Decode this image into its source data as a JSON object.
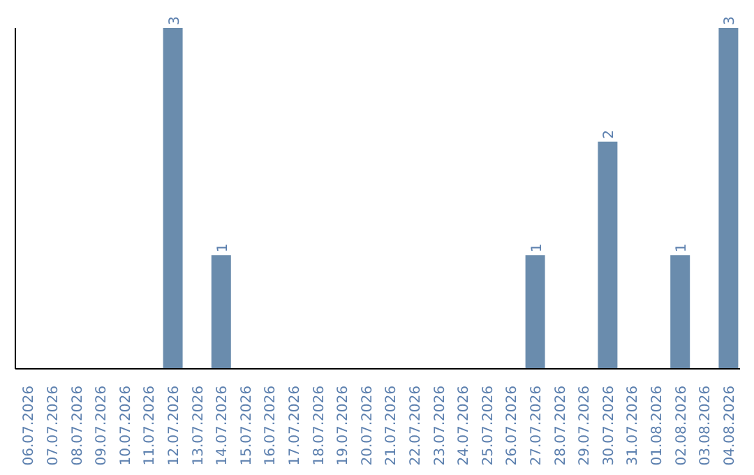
{
  "chart_data": {
    "type": "bar",
    "categories": [
      "06.07.2026",
      "07.07.2026",
      "08.07.2026",
      "09.07.2026",
      "10.07.2026",
      "11.07.2026",
      "12.07.2026",
      "13.07.2026",
      "14.07.2026",
      "15.07.2026",
      "16.07.2026",
      "17.07.2026",
      "18.07.2026",
      "19.07.2026",
      "20.07.2026",
      "21.07.2026",
      "22.07.2026",
      "23.07.2026",
      "24.07.2026",
      "25.07.2026",
      "26.07.2026",
      "27.07.2026",
      "28.07.2026",
      "29.07.2026",
      "30.07.2026",
      "31.07.2026",
      "01.08.2026",
      "02.08.2026",
      "03.08.2026",
      "04.08.2026"
    ],
    "values": [
      0,
      0,
      0,
      0,
      0,
      0,
      3,
      0,
      1,
      0,
      0,
      0,
      0,
      0,
      0,
      0,
      0,
      0,
      0,
      0,
      0,
      1,
      0,
      0,
      2,
      0,
      0,
      1,
      0,
      3
    ],
    "value_labels": [
      null,
      null,
      null,
      null,
      null,
      null,
      "3",
      null,
      "1",
      null,
      null,
      null,
      null,
      null,
      null,
      null,
      null,
      null,
      null,
      null,
      null,
      "1",
      null,
      null,
      "2",
      null,
      null,
      "1",
      null,
      "3"
    ],
    "color": "#6a8cad",
    "ylim": [
      0,
      3
    ],
    "tick_labels": "x"
  }
}
